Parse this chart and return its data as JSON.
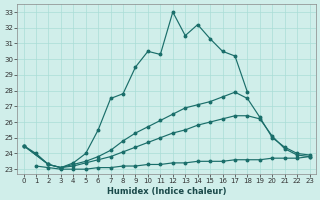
{
  "xlabel": "Humidex (Indice chaleur)",
  "ylabel": "",
  "xlim": [
    -0.5,
    23.5
  ],
  "ylim": [
    22.7,
    33.5
  ],
  "xticks": [
    0,
    1,
    2,
    3,
    4,
    5,
    6,
    7,
    8,
    9,
    10,
    11,
    12,
    13,
    14,
    15,
    16,
    17,
    18,
    19,
    20,
    21,
    22,
    23
  ],
  "yticks": [
    23,
    24,
    25,
    26,
    27,
    28,
    29,
    30,
    31,
    32,
    33
  ],
  "bg_color": "#d0eeea",
  "line_color": "#1a6e6a",
  "grid_color": "#aaddd6",
  "curves": [
    {
      "x": [
        0,
        1,
        2,
        3,
        4,
        5,
        6,
        7,
        8,
        9,
        10,
        11,
        12,
        13,
        14,
        15,
        16,
        17,
        18
      ],
      "y": [
        24.5,
        24.0,
        23.3,
        23.1,
        23.4,
        24.0,
        25.5,
        27.5,
        27.8,
        29.5,
        30.5,
        30.3,
        33.0,
        31.5,
        32.2,
        31.3,
        30.5,
        30.2,
        27.9
      ]
    },
    {
      "x": [
        0,
        2,
        3,
        4,
        5,
        6,
        7,
        8,
        9,
        10,
        11,
        12,
        13,
        14,
        15,
        16,
        17,
        18,
        19,
        20,
        21,
        22,
        23
      ],
      "y": [
        24.5,
        23.3,
        23.1,
        23.3,
        23.5,
        23.8,
        24.2,
        24.8,
        25.3,
        25.7,
        26.1,
        26.5,
        26.9,
        27.1,
        27.3,
        27.6,
        27.9,
        27.5,
        26.3,
        25.0,
        24.4,
        24.0,
        23.9
      ]
    },
    {
      "x": [
        0,
        2,
        3,
        4,
        5,
        6,
        7,
        8,
        9,
        10,
        11,
        12,
        13,
        14,
        15,
        16,
        17,
        18,
        19,
        20,
        21,
        22,
        23
      ],
      "y": [
        24.5,
        23.3,
        23.1,
        23.2,
        23.4,
        23.6,
        23.8,
        24.1,
        24.4,
        24.7,
        25.0,
        25.3,
        25.5,
        25.8,
        26.0,
        26.2,
        26.4,
        26.4,
        26.2,
        25.1,
        24.3,
        23.9,
        23.8
      ]
    },
    {
      "x": [
        1,
        2,
        3,
        4,
        5,
        6,
        7,
        8,
        9,
        10,
        11,
        12,
        13,
        14,
        15,
        16,
        17,
        18,
        19,
        20,
        21,
        22,
        23
      ],
      "y": [
        23.2,
        23.1,
        23.0,
        23.0,
        23.0,
        23.1,
        23.1,
        23.2,
        23.2,
        23.3,
        23.3,
        23.4,
        23.4,
        23.5,
        23.5,
        23.5,
        23.6,
        23.6,
        23.6,
        23.7,
        23.7,
        23.7,
        23.8
      ]
    }
  ]
}
